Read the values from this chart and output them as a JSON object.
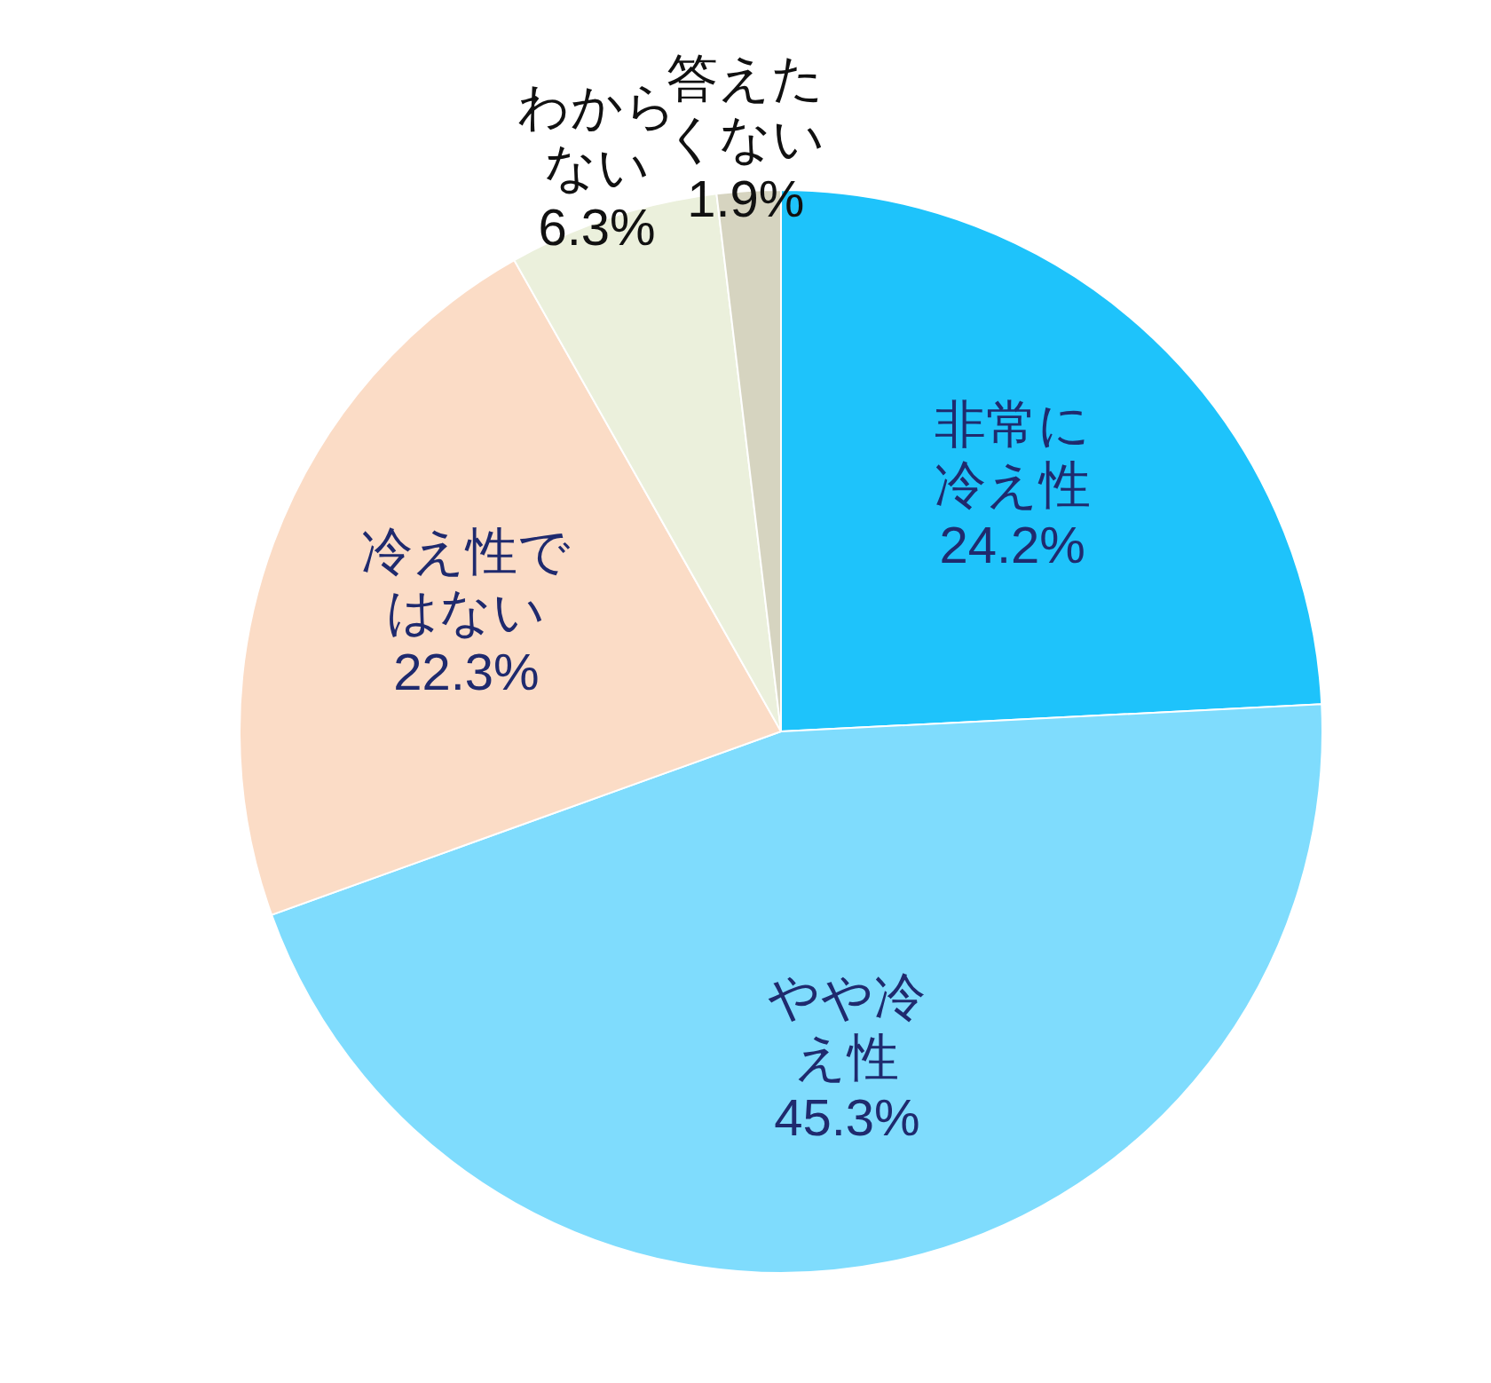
{
  "chart_data": {
    "type": "pie",
    "categories": [
      "非常に冷え性",
      "やや冷え性",
      "冷え性ではない",
      "わからない",
      "答えたくない"
    ],
    "values": [
      24.2,
      45.3,
      22.3,
      6.3,
      1.9
    ],
    "value_labels": [
      "24.2%",
      "45.3%",
      "22.3%",
      "6.3%",
      "1.9%"
    ],
    "colors": [
      "#1ec3fb",
      "#7fdcfd",
      "#fbdcc6",
      "#ebf0dc",
      "#d6d4c0"
    ],
    "legend": false
  }
}
